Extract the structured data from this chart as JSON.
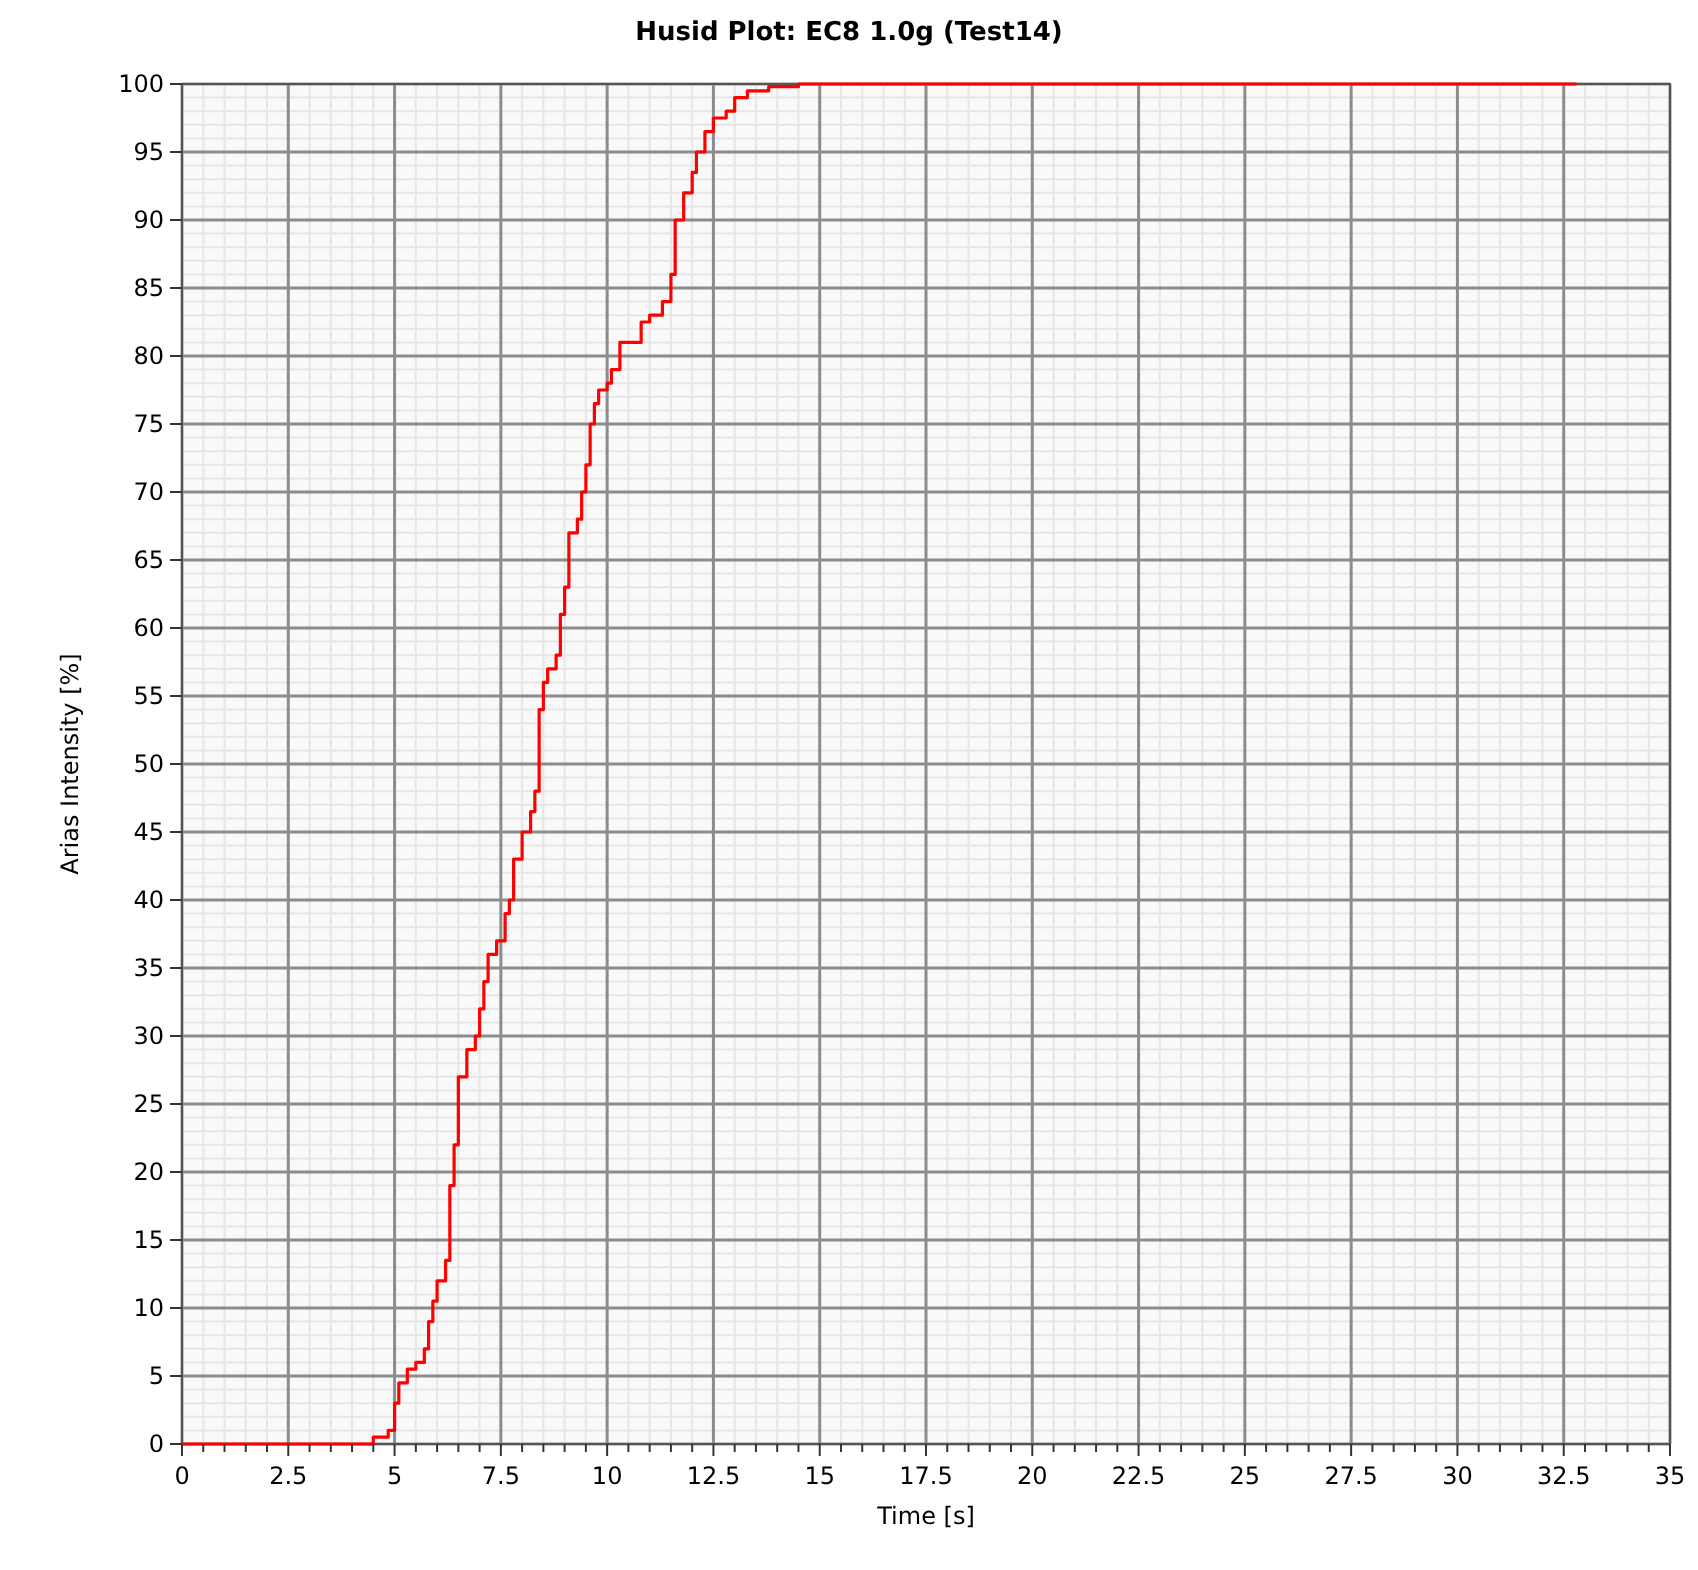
{
  "chart_data": {
    "type": "step",
    "title": "Husid Plot: EC8 1.0g (Test14)",
    "xlabel": "Time [s]",
    "ylabel": "Arias Intensity [%]",
    "xlim": [
      0,
      35
    ],
    "ylim": [
      0,
      100
    ],
    "xticks": [
      0,
      2.5,
      5,
      7.5,
      10,
      12.5,
      15,
      17.5,
      20,
      22.5,
      25,
      27.5,
      30,
      32.5,
      35
    ],
    "yticks": [
      0,
      5,
      10,
      15,
      20,
      25,
      30,
      35,
      40,
      45,
      50,
      55,
      60,
      65,
      70,
      75,
      80,
      85,
      90,
      95,
      100
    ],
    "grid": true,
    "series": [
      {
        "color": "#ff0000",
        "x": [
          0,
          4.2,
          4.5,
          4.85,
          5.0,
          5.1,
          5.3,
          5.5,
          5.7,
          5.8,
          5.9,
          6.0,
          6.2,
          6.3,
          6.4,
          6.5,
          6.7,
          6.9,
          7.0,
          7.1,
          7.2,
          7.4,
          7.6,
          7.7,
          7.8,
          8.0,
          8.2,
          8.3,
          8.4,
          8.5,
          8.6,
          8.8,
          8.9,
          9.0,
          9.1,
          9.3,
          9.4,
          9.5,
          9.6,
          9.7,
          9.8,
          10.0,
          10.1,
          10.3,
          10.8,
          11.0,
          11.3,
          11.5,
          11.6,
          11.8,
          12.0,
          12.1,
          12.3,
          12.5,
          12.8,
          13.0,
          13.3,
          13.8,
          14.5,
          32.8
        ],
        "values": [
          0,
          0,
          0.5,
          1,
          3,
          4.5,
          5.5,
          6,
          7,
          9,
          10.5,
          12,
          13.5,
          19,
          22,
          27,
          29,
          30,
          32,
          34,
          36,
          37,
          39,
          40,
          43,
          45,
          46.5,
          48,
          54,
          56,
          57,
          58,
          61,
          63,
          67,
          68,
          70,
          72,
          75,
          76.5,
          77.5,
          78,
          79,
          81,
          82.5,
          83,
          84,
          86,
          90,
          92,
          93.5,
          95,
          96.5,
          97.5,
          98,
          99,
          99.5,
          99.8,
          100,
          100
        ]
      }
    ]
  }
}
